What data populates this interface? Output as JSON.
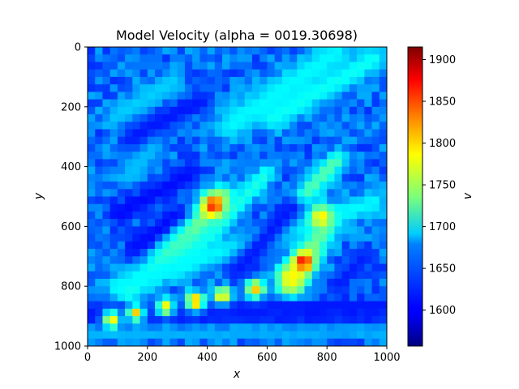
{
  "chart_data": {
    "type": "heatmap",
    "title": "Model Velocity (alpha = 0019.30698)",
    "xlabel": "x",
    "ylabel": "y",
    "colorbar_label": "v",
    "colormap": "jet",
    "xlim": [
      0,
      1000
    ],
    "ylim": [
      1000,
      0
    ],
    "xticks": [
      "0",
      "200",
      "400",
      "600",
      "800",
      "1000"
    ],
    "yticks": [
      "0",
      "200",
      "400",
      "600",
      "800",
      "1000"
    ],
    "vmin": 1557,
    "vmax": 1915,
    "colorbar_ticks": [
      "1600",
      "1650",
      "1700",
      "1750",
      "1800",
      "1850",
      "1900"
    ],
    "grid": "40x40",
    "background_value": 1640,
    "features": [
      {
        "shape": "band",
        "from": [
          280,
          700
        ],
        "to": [
          450,
          500
        ],
        "width": 35,
        "value": 1730
      },
      {
        "shape": "band",
        "from": [
          130,
          820
        ],
        "to": [
          330,
          650
        ],
        "width": 28,
        "value": 1715
      },
      {
        "shape": "band",
        "from": [
          330,
          720
        ],
        "to": [
          600,
          420
        ],
        "width": 22,
        "value": 1700
      },
      {
        "shape": "band",
        "from": [
          680,
          800
        ],
        "to": [
          800,
          580
        ],
        "width": 35,
        "value": 1735
      },
      {
        "shape": "band",
        "from": [
          720,
          500
        ],
        "to": [
          830,
          380
        ],
        "width": 25,
        "value": 1720
      },
      {
        "shape": "band",
        "from": [
          480,
          260
        ],
        "to": [
          830,
          20
        ],
        "width": 40,
        "value": 1690
      },
      {
        "shape": "band",
        "from": [
          100,
          230
        ],
        "to": [
          280,
          120
        ],
        "width": 30,
        "value": 1675
      },
      {
        "shape": "band",
        "from": [
          620,
          240
        ],
        "to": [
          960,
          40
        ],
        "width": 30,
        "value": 1695
      },
      {
        "shape": "band",
        "from": [
          100,
          800
        ],
        "to": [
          960,
          520
        ],
        "width": 30,
        "value": 1690
      },
      {
        "shape": "band",
        "from": [
          150,
          420
        ],
        "to": [
          220,
          330
        ],
        "width": 30,
        "value": 1670
      },
      {
        "shape": "band",
        "from": [
          150,
          300
        ],
        "to": [
          380,
          180
        ],
        "width": 28,
        "value": 1610
      },
      {
        "shape": "band",
        "from": [
          100,
          560
        ],
        "to": [
          350,
          420
        ],
        "width": 28,
        "value": 1605
      },
      {
        "shape": "band",
        "from": [
          150,
          680
        ],
        "to": [
          300,
          560
        ],
        "width": 22,
        "value": 1605
      },
      {
        "shape": "band",
        "from": [
          500,
          750
        ],
        "to": [
          680,
          540
        ],
        "width": 30,
        "value": 1610
      },
      {
        "shape": "band",
        "from": [
          830,
          800
        ],
        "to": [
          930,
          700
        ],
        "width": 22,
        "value": 1612
      },
      {
        "shape": "band",
        "from": [
          0,
          900
        ],
        "to": [
          1000,
          900
        ],
        "width": 16,
        "value": 1605
      },
      {
        "shape": "band",
        "from": [
          0,
          960
        ],
        "to": [
          1000,
          950
        ],
        "width": 16,
        "value": 1665
      },
      {
        "shape": "band",
        "from": [
          0,
          880
        ],
        "to": [
          1000,
          860
        ],
        "width": 18,
        "value": 1610
      },
      {
        "shape": "spot",
        "at": [
          420,
          530
        ],
        "radius": 25,
        "value": 1860
      },
      {
        "shape": "spot",
        "at": [
          720,
          720
        ],
        "radius": 22,
        "value": 1880
      },
      {
        "shape": "spot",
        "at": [
          780,
          570
        ],
        "radius": 25,
        "value": 1790
      },
      {
        "shape": "spot",
        "at": [
          560,
          810
        ],
        "radius": 22,
        "value": 1800
      },
      {
        "shape": "spot",
        "at": [
          450,
          830
        ],
        "radius": 20,
        "value": 1800
      },
      {
        "shape": "spot",
        "at": [
          360,
          850
        ],
        "radius": 22,
        "value": 1820
      },
      {
        "shape": "spot",
        "at": [
          260,
          870
        ],
        "radius": 20,
        "value": 1790
      },
      {
        "shape": "spot",
        "at": [
          160,
          890
        ],
        "radius": 20,
        "value": 1800
      },
      {
        "shape": "spot",
        "at": [
          80,
          910
        ],
        "radius": 20,
        "value": 1790
      },
      {
        "shape": "spot",
        "at": [
          680,
          770
        ],
        "radius": 30,
        "value": 1785
      }
    ]
  }
}
